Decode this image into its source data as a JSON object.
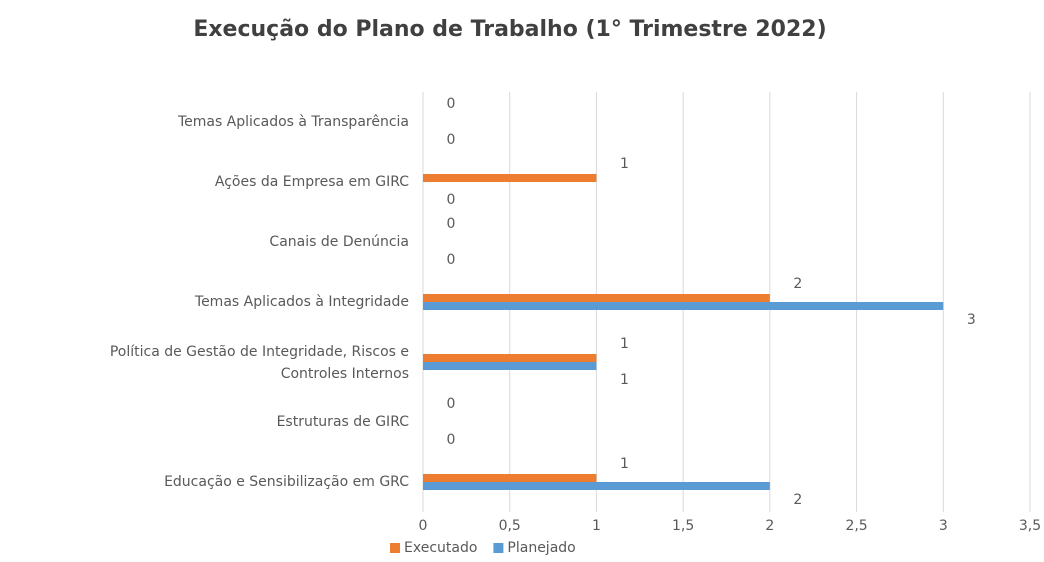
{
  "chart_data": {
    "type": "bar",
    "orientation": "horizontal",
    "title": "Execução do Plano de Trabalho (1° Trimestre 2022)",
    "categories": [
      "Temas Aplicados à Transparência",
      "Ações da Empresa em GIRC",
      "Canais de Denúncia",
      "Temas Aplicados à Integridade",
      "Política de Gestão de Integridade, Riscos e Controles Internos",
      "Estruturas de GIRC",
      "Educação e Sensibilização em GRC"
    ],
    "series": [
      {
        "name": "Executado",
        "color": "#ed7d31",
        "values": [
          0,
          1,
          0,
          2,
          1,
          0,
          1
        ]
      },
      {
        "name": "Planejado",
        "color": "#5b9bd5",
        "values": [
          0,
          0,
          0,
          3,
          1,
          0,
          2
        ]
      }
    ],
    "xlim": [
      0,
      3.5
    ],
    "xticks": [
      0,
      {
        "value": 0.5,
        "label": "0,5"
      },
      1,
      {
        "value": 1.5,
        "label": "1,5"
      },
      2,
      {
        "value": 2.5,
        "label": "2,5"
      },
      3,
      {
        "value": 3.5,
        "label": "3,5"
      }
    ],
    "grid": true,
    "legend": "bottom"
  }
}
